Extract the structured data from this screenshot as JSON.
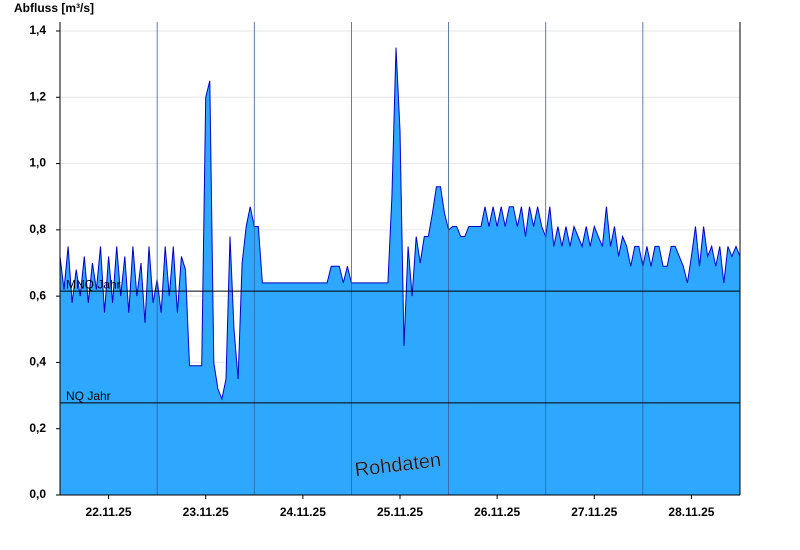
{
  "chart_data": {
    "type": "area",
    "y_axis_label": "Abfluss [m³/s]",
    "annotation": "Rohdaten",
    "color": "#2ea8ff",
    "line_color": "#0000cc",
    "grid": true,
    "x": [
      0,
      1,
      2,
      3,
      4,
      5,
      6,
      7,
      8,
      9,
      10,
      11,
      12,
      13,
      14,
      15,
      16,
      17,
      18,
      19,
      20,
      21,
      22,
      23,
      24,
      25,
      26,
      27,
      28,
      29,
      30,
      31,
      32,
      33,
      34,
      35,
      36,
      37,
      38,
      39,
      40,
      41,
      42,
      43,
      44,
      45,
      46,
      47,
      48,
      49,
      50,
      51,
      52,
      53,
      54,
      55,
      56,
      57,
      58,
      59,
      60,
      61,
      62,
      63,
      64,
      65,
      66,
      67,
      68,
      69,
      70,
      71,
      72,
      73,
      74,
      75,
      76,
      77,
      78,
      79,
      80,
      81,
      82,
      83,
      84,
      85,
      86,
      87,
      88,
      89,
      90,
      91,
      92,
      93,
      94,
      95,
      96,
      97,
      98,
      99,
      100,
      101,
      102,
      103,
      104,
      105,
      106,
      107,
      108,
      109,
      110,
      111,
      112,
      113,
      114,
      115,
      116,
      117,
      118,
      119,
      120,
      121,
      122,
      123,
      124,
      125,
      126,
      127,
      128,
      129,
      130,
      131,
      132,
      133,
      134,
      135,
      136,
      137,
      138,
      139,
      140,
      141,
      142,
      143,
      144,
      145,
      146,
      147,
      148,
      149,
      150,
      151,
      152,
      153,
      154,
      155,
      156,
      157,
      158,
      159,
      160,
      161,
      162,
      163,
      164,
      165,
      166,
      167,
      168
    ],
    "values": [
      0.72,
      0.62,
      0.75,
      0.58,
      0.68,
      0.6,
      0.72,
      0.58,
      0.7,
      0.62,
      0.75,
      0.55,
      0.72,
      0.58,
      0.75,
      0.6,
      0.72,
      0.55,
      0.75,
      0.6,
      0.7,
      0.52,
      0.75,
      0.58,
      0.65,
      0.55,
      0.75,
      0.6,
      0.75,
      0.55,
      0.72,
      0.68,
      0.39,
      0.39,
      0.39,
      0.39,
      1.2,
      1.25,
      0.4,
      0.32,
      0.29,
      0.35,
      0.78,
      0.5,
      0.35,
      0.7,
      0.81,
      0.87,
      0.81,
      0.81,
      0.64,
      0.64,
      0.64,
      0.64,
      0.64,
      0.64,
      0.64,
      0.64,
      0.64,
      0.64,
      0.64,
      0.64,
      0.64,
      0.64,
      0.64,
      0.64,
      0.64,
      0.69,
      0.69,
      0.69,
      0.64,
      0.69,
      0.64,
      0.64,
      0.64,
      0.64,
      0.64,
      0.64,
      0.64,
      0.64,
      0.64,
      0.64,
      0.9,
      1.35,
      1.1,
      0.45,
      0.75,
      0.6,
      0.78,
      0.7,
      0.78,
      0.78,
      0.85,
      0.93,
      0.93,
      0.85,
      0.8,
      0.81,
      0.81,
      0.78,
      0.78,
      0.81,
      0.81,
      0.81,
      0.81,
      0.87,
      0.81,
      0.87,
      0.81,
      0.87,
      0.81,
      0.87,
      0.87,
      0.81,
      0.87,
      0.78,
      0.87,
      0.81,
      0.87,
      0.81,
      0.78,
      0.87,
      0.75,
      0.81,
      0.75,
      0.81,
      0.75,
      0.81,
      0.78,
      0.75,
      0.81,
      0.75,
      0.81,
      0.78,
      0.75,
      0.87,
      0.75,
      0.81,
      0.72,
      0.78,
      0.75,
      0.69,
      0.75,
      0.75,
      0.69,
      0.75,
      0.69,
      0.75,
      0.75,
      0.69,
      0.69,
      0.75,
      0.75,
      0.72,
      0.69,
      0.64,
      0.72,
      0.81,
      0.69,
      0.81,
      0.72,
      0.75,
      0.69,
      0.75,
      0.64,
      0.75,
      0.72,
      0.75,
      0.72
    ],
    "xlim": [
      0,
      168
    ],
    "xticks": [
      {
        "value": 12,
        "label": "22.11.25"
      },
      {
        "value": 36,
        "label": "23.11.25"
      },
      {
        "value": 60,
        "label": "24.11.25"
      },
      {
        "value": 84,
        "label": "25.11.25"
      },
      {
        "value": 108,
        "label": "26.11.25"
      },
      {
        "value": 132,
        "label": "27.11.25"
      },
      {
        "value": 156,
        "label": "28.11.25"
      }
    ],
    "xgrid": [
      24,
      48,
      72,
      96,
      120,
      144
    ],
    "ylim": [
      0,
      1.4
    ],
    "yticks": [
      {
        "value": 0,
        "label": "0,0"
      },
      {
        "value": 0.2,
        "label": "0,2"
      },
      {
        "value": 0.4,
        "label": "0,4"
      },
      {
        "value": 0.6,
        "label": "0,6"
      },
      {
        "value": 0.8,
        "label": "0,8"
      },
      {
        "value": 1.0,
        "label": "1,0"
      },
      {
        "value": 1.2,
        "label": "1,2"
      },
      {
        "value": 1.4,
        "label": "1,4"
      }
    ],
    "reference_lines": [
      {
        "label": "MNQ Jahr",
        "value": 0.615
      },
      {
        "label": "NQ Jahr",
        "value": 0.278
      }
    ]
  }
}
